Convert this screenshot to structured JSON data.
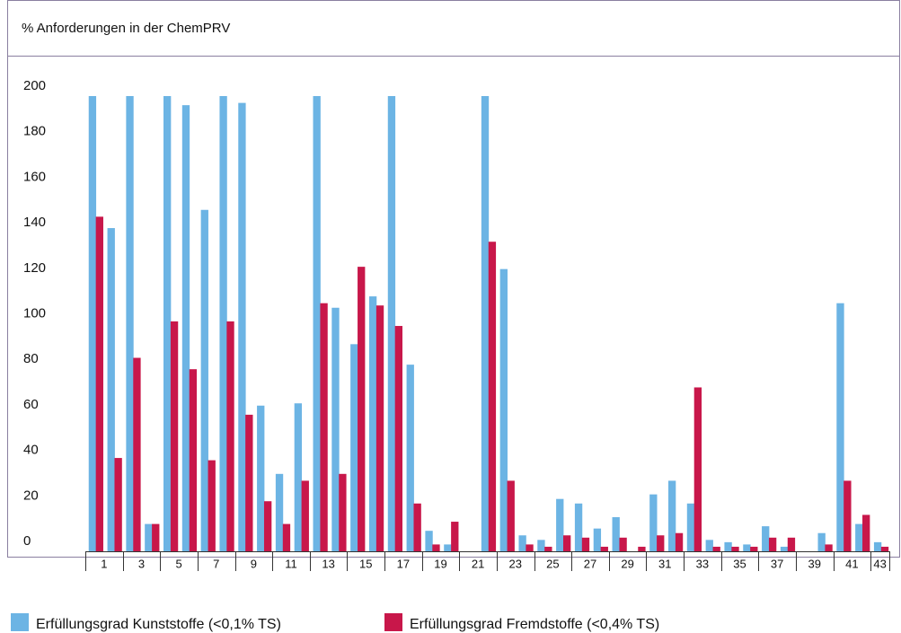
{
  "chart_data": {
    "type": "bar",
    "title": "% Anforderungen in der ChemPRV",
    "categories": [
      "1",
      null,
      "3",
      null,
      "5",
      null,
      "7",
      null,
      "9",
      null,
      "11",
      null,
      "13",
      null,
      "15",
      null,
      "17",
      null,
      "19",
      null,
      "21",
      null,
      "23",
      null,
      "25",
      null,
      "27",
      null,
      "29",
      null,
      "31",
      null,
      "33",
      null,
      "35",
      null,
      "37",
      null,
      "39",
      null,
      "41",
      null,
      "43"
    ],
    "series": [
      {
        "name": "Erfüllungsgrad Kunststoffe (<0,1% TS)",
        "color": "#6cb4e4",
        "values": [
          200,
          142,
          200,
          12,
          200,
          196,
          150,
          200,
          197,
          64,
          34,
          65,
          200,
          107,
          91,
          112,
          200,
          82,
          9,
          3,
          0,
          200,
          124,
          7,
          5,
          23,
          21,
          10,
          15,
          0,
          25,
          31,
          21,
          5,
          4,
          3,
          11,
          2,
          0,
          8,
          109,
          12,
          4
        ]
      },
      {
        "name": "Erfüllungsgrad Fremdstoffe (<0,4% TS)",
        "color": "#c8174a",
        "values": [
          147,
          41,
          85,
          12,
          101,
          80,
          40,
          101,
          60,
          22,
          12,
          31,
          109,
          34,
          125,
          108,
          99,
          21,
          3,
          13,
          0,
          136,
          31,
          3,
          2,
          7,
          6,
          2,
          6,
          2,
          7,
          8,
          72,
          2,
          2,
          2,
          6,
          6,
          0,
          3,
          31,
          16,
          2
        ]
      }
    ],
    "ylim": [
      0,
      200
    ],
    "yticks": [
      0,
      20,
      40,
      60,
      80,
      100,
      120,
      140,
      160,
      180,
      200
    ],
    "grid": false
  }
}
